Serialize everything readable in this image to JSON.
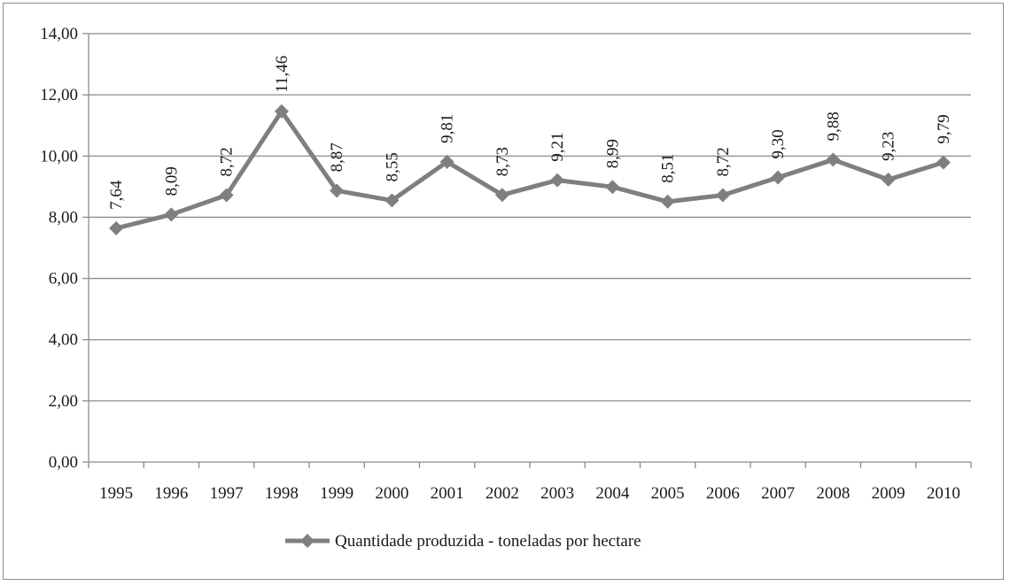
{
  "chart_data": {
    "type": "line",
    "title": "",
    "xlabel": "",
    "ylabel": "",
    "categories": [
      "1995",
      "1996",
      "1997",
      "1998",
      "1999",
      "2000",
      "2001",
      "2002",
      "2003",
      "2004",
      "2005",
      "2006",
      "2007",
      "2008",
      "2009",
      "2010"
    ],
    "series": [
      {
        "name": "Quantidade produzida - toneladas por hectare",
        "values": [
          7.64,
          8.09,
          8.72,
          11.46,
          8.87,
          8.55,
          9.81,
          8.73,
          9.21,
          8.99,
          8.51,
          8.72,
          9.3,
          9.88,
          9.23,
          9.79
        ],
        "data_labels": [
          "7,64",
          "8,09",
          "8,72",
          "11,46",
          "8,87",
          "8,55",
          "9,81",
          "8,73",
          "9,21",
          "8,99",
          "8,51",
          "8,72",
          "9,30",
          "9,88",
          "9,23",
          "9,79"
        ],
        "color": "#7f7f7f",
        "marker": "diamond"
      }
    ],
    "ylim": [
      0,
      14
    ],
    "yticks": [
      0,
      2,
      4,
      6,
      8,
      10,
      12,
      14
    ],
    "ytick_labels": [
      "0,00",
      "2,00",
      "4,00",
      "6,00",
      "8,00",
      "10,00",
      "12,00",
      "14,00"
    ],
    "grid": true,
    "legend_position": "bottom"
  }
}
